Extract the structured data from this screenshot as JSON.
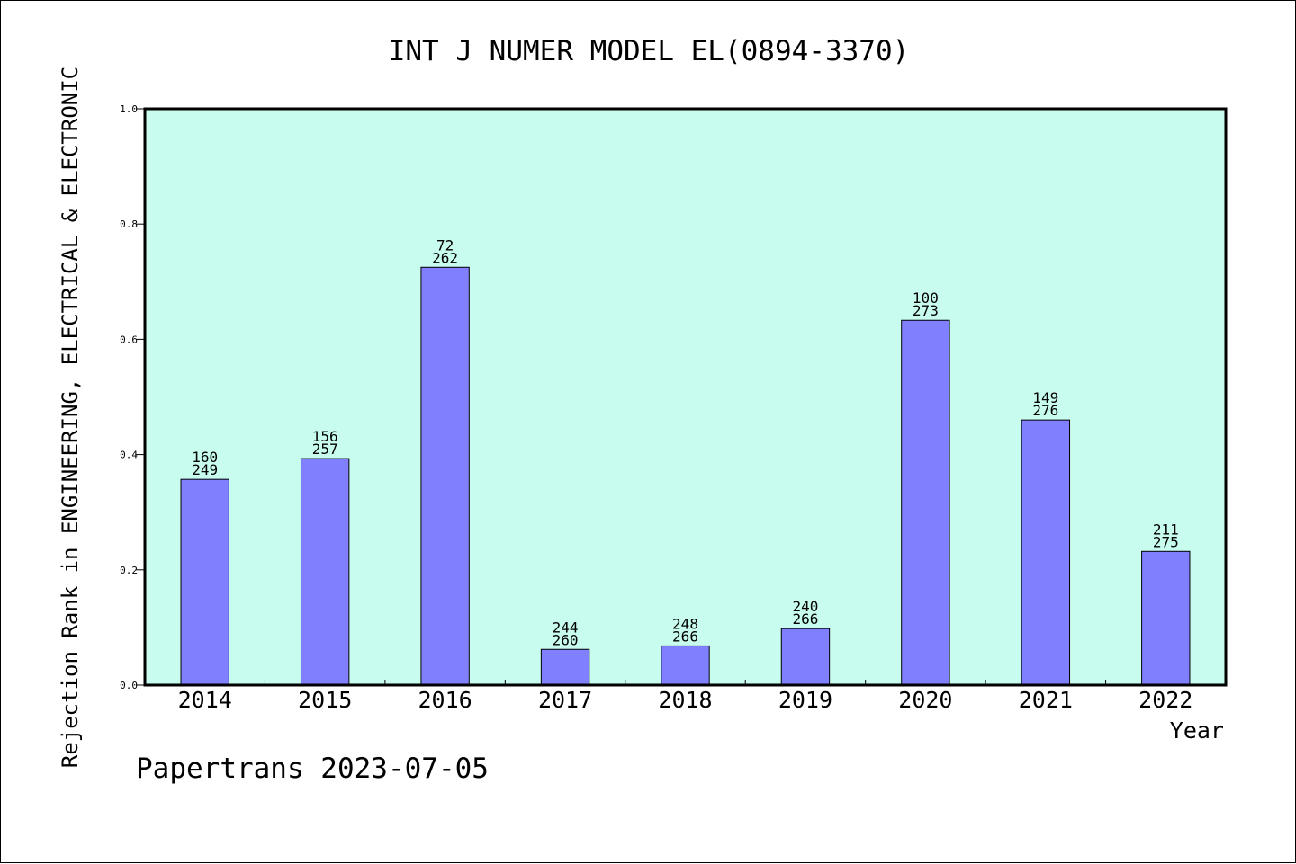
{
  "chart_data": {
    "type": "bar",
    "title": "INT J NUMER MODEL EL(0894-3370)",
    "xlabel": "Year",
    "ylabel": "Rejection Rank in ENGINEERING, ELECTRICAL & ELECTRONIC",
    "ylim": [
      0,
      1.0
    ],
    "yticks": [
      "0.0",
      "0.2",
      "0.4",
      "0.6",
      "0.8",
      "1.0"
    ],
    "categories": [
      "2014",
      "2015",
      "2016",
      "2017",
      "2018",
      "2019",
      "2020",
      "2021",
      "2022"
    ],
    "values": [
      0.357,
      0.393,
      0.725,
      0.062,
      0.068,
      0.098,
      0.633,
      0.46,
      0.232
    ],
    "rank_labels": [
      "160",
      "156",
      "72",
      "244",
      "248",
      "240",
      "100",
      "149",
      "211"
    ],
    "total_labels": [
      "249",
      "257",
      "262",
      "260",
      "266",
      "266",
      "273",
      "276",
      "275"
    ],
    "grid": false,
    "legend": "none",
    "colors": {
      "plot_background": "#c8fcee",
      "bar_fill": "#8080ff",
      "bar_stroke": "#000000"
    }
  },
  "footer": {
    "credit": "Papertrans 2023-07-05"
  }
}
